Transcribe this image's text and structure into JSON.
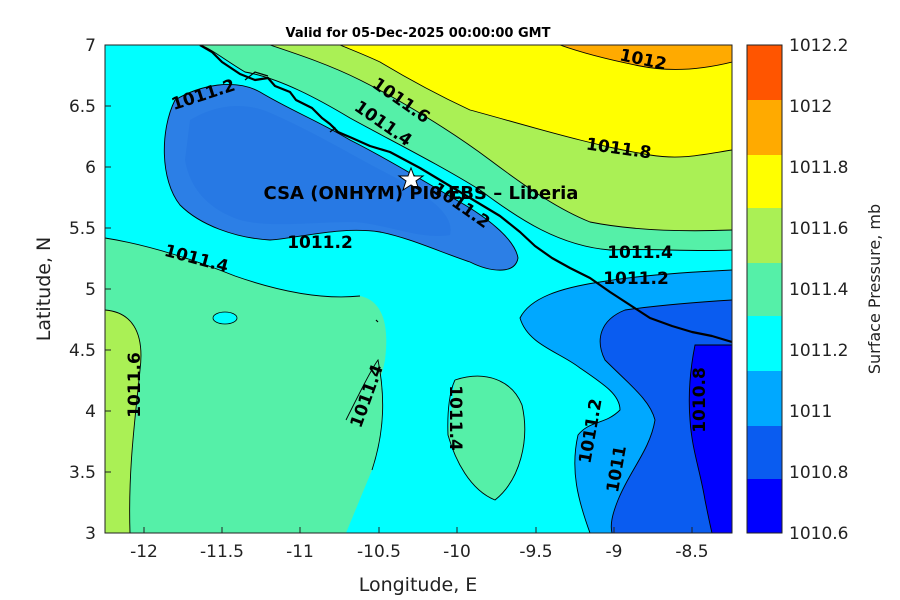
{
  "title": "Valid for 05-Dec-2025 00:00:00 GMT",
  "xlabel": "Longitude, E",
  "ylabel": "Latitude, N",
  "colorbar_label": "Surface Pressure, mb",
  "location_label": "CSA (ONHYM) PI0 EBS  – Liberia",
  "x_ticks": [
    "-12",
    "-11.5",
    "-11",
    "-10.5",
    "-10",
    "-9.5",
    "-9",
    "-8.5"
  ],
  "y_ticks": [
    "3",
    "3.5",
    "4",
    "4.5",
    "5",
    "5.5",
    "6",
    "6.5",
    "7"
  ],
  "colorbar_ticks": [
    "1010.6",
    "1010.8",
    "1011",
    "1011.2",
    "1011.4",
    "1011.6",
    "1011.8",
    "1012",
    "1012.2"
  ],
  "contour_labels": {
    "c1": "1011.2",
    "c2": "1011.6",
    "c3": "1011.4",
    "c4": "1012",
    "c5": "1011.8",
    "c6": "1011.2",
    "c7": "1011.2",
    "c8": "1011.4",
    "c9": "1011.4",
    "c10": "1011.2",
    "c11": "1011.6",
    "c12": "1011.4",
    "c13": "1011.4",
    "c14": "1011.2",
    "c15": "1011",
    "c16": "1010.8"
  },
  "colors": {
    "band_1010_6": "#0000ff",
    "band_1010_8": "#0a5cf0",
    "band_1011": "#00a8ff",
    "band_1011_2": "#00ffff",
    "band_1011_4": "#55f0a8",
    "band_1011_6": "#aaf055",
    "band_1011_8": "#ffff00",
    "band_1012": "#ffaa00",
    "band_1012_2": "#ff5500"
  },
  "station_marker": "star-icon",
  "chart_data": {
    "type": "heatmap",
    "xlabel": "Longitude, E",
    "ylabel": "Latitude, N",
    "xlim": [
      -12.25,
      -8.25
    ],
    "ylim": [
      3,
      7
    ],
    "colorbar_range": [
      1010.6,
      1012.2
    ],
    "levels": [
      1010.6,
      1010.8,
      1011.0,
      1011.2,
      1011.4,
      1011.6,
      1011.8,
      1012.0,
      1012.2
    ],
    "station": {
      "lon": -10.3,
      "lat": 5.9
    },
    "grid": false
  }
}
